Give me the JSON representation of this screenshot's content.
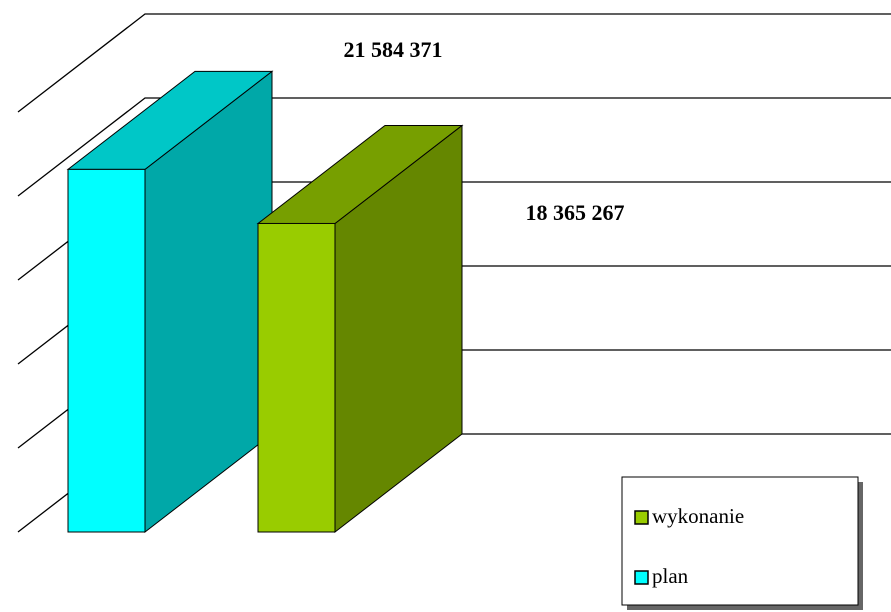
{
  "chart_data": {
    "type": "bar3d",
    "series": [
      {
        "name": "plan",
        "color": "#00ffff",
        "values": [
          21584371
        ],
        "value_labels": [
          "21 584 371"
        ]
      },
      {
        "name": "wykonanie",
        "color": "#99cc00",
        "values": [
          18365267
        ],
        "value_labels": [
          "18 365 267"
        ]
      }
    ],
    "ylim": [
      0,
      25000000
    ],
    "yticks": [
      0,
      5000000,
      10000000,
      15000000,
      20000000,
      25000000
    ],
    "grid": true,
    "legend": "bottom-right"
  }
}
